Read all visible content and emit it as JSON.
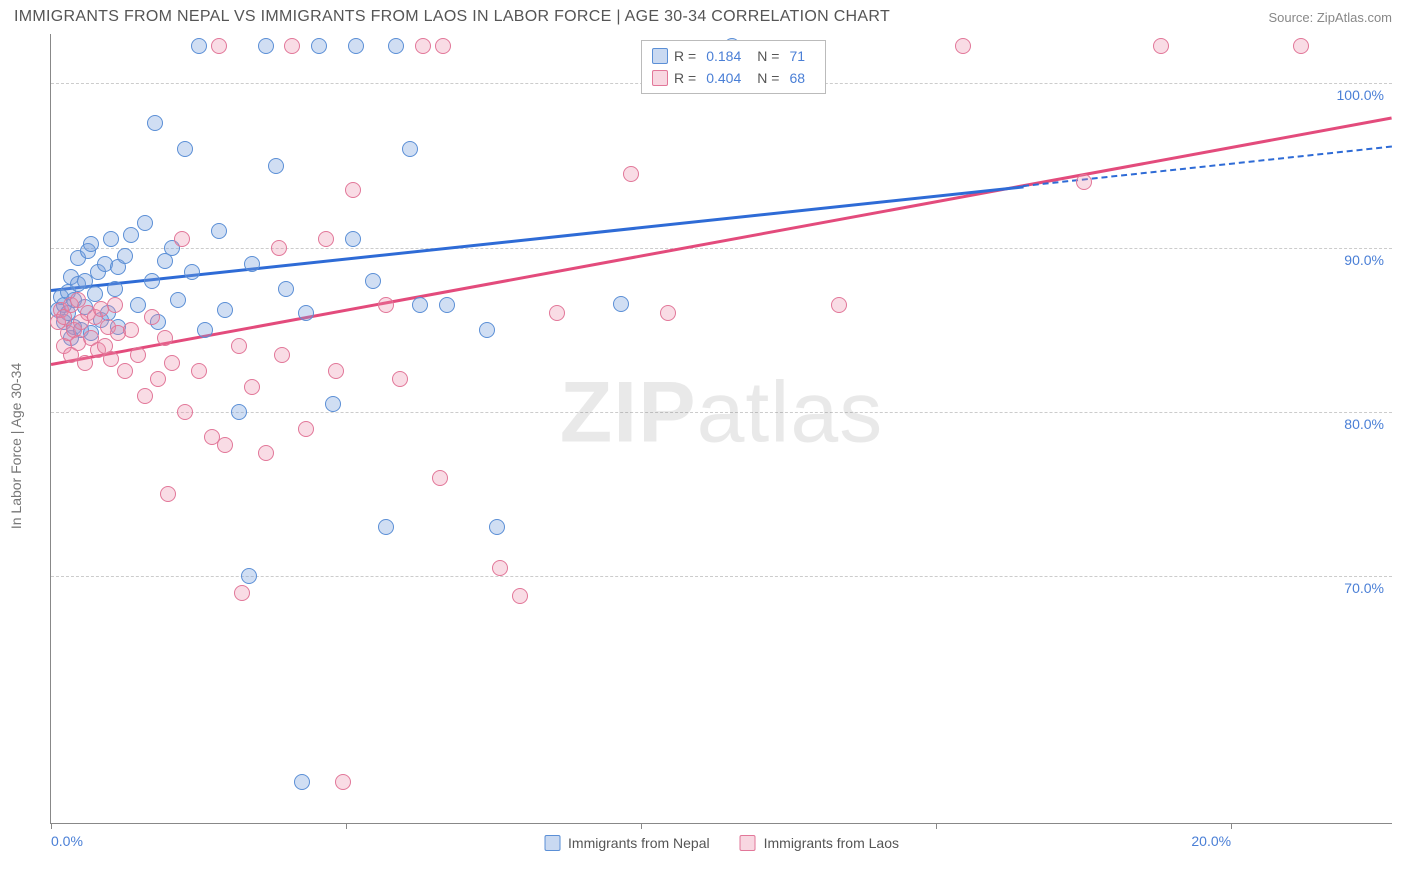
{
  "title": "IMMIGRANTS FROM NEPAL VS IMMIGRANTS FROM LAOS IN LABOR FORCE | AGE 30-34 CORRELATION CHART",
  "source": "Source: ZipAtlas.com",
  "watermark_a": "ZIP",
  "watermark_b": "atlas",
  "yaxis_title": "In Labor Force | Age 30-34",
  "chart": {
    "type": "scatter",
    "xlim": [
      0,
      20
    ],
    "ylim": [
      55,
      103
    ],
    "xticks": [
      0,
      4.4,
      8.8,
      13.2,
      17.6
    ],
    "xtick_labels": [
      "0.0%",
      "",
      "",
      "",
      "20.0%"
    ],
    "yticks": [
      70,
      80,
      90,
      100
    ],
    "ytick_labels": [
      "70.0%",
      "80.0%",
      "90.0%",
      "100.0%"
    ],
    "background_color": "#ffffff",
    "grid_color": "#cccccc",
    "marker_radius": 8,
    "series": [
      {
        "name": "Immigrants from Nepal",
        "color_fill": "rgba(120,160,220,0.35)",
        "color_stroke": "#5b8fd6",
        "trend_color": "#2e6bd6",
        "R": "0.184",
        "N": "71",
        "trend": {
          "x1": 0,
          "y1": 87.5,
          "x2": 14.5,
          "y2": 93.8,
          "dash_x2": 20,
          "dash_y2": 96.2
        },
        "points": [
          [
            0.1,
            86.2
          ],
          [
            0.15,
            87.0
          ],
          [
            0.2,
            85.5
          ],
          [
            0.2,
            86.5
          ],
          [
            0.25,
            86.0
          ],
          [
            0.25,
            87.3
          ],
          [
            0.3,
            84.5
          ],
          [
            0.3,
            88.2
          ],
          [
            0.35,
            85.2
          ],
          [
            0.35,
            86.8
          ],
          [
            0.4,
            87.8
          ],
          [
            0.4,
            89.4
          ],
          [
            0.45,
            85.0
          ],
          [
            0.5,
            86.4
          ],
          [
            0.5,
            88.0
          ],
          [
            0.55,
            89.8
          ],
          [
            0.6,
            84.8
          ],
          [
            0.6,
            90.2
          ],
          [
            0.65,
            87.2
          ],
          [
            0.7,
            88.5
          ],
          [
            0.75,
            85.6
          ],
          [
            0.8,
            89.0
          ],
          [
            0.85,
            86.0
          ],
          [
            0.9,
            90.5
          ],
          [
            0.95,
            87.5
          ],
          [
            1.0,
            88.8
          ],
          [
            1.0,
            85.2
          ],
          [
            1.1,
            89.5
          ],
          [
            1.2,
            90.8
          ],
          [
            1.3,
            86.5
          ],
          [
            1.4,
            91.5
          ],
          [
            1.5,
            88.0
          ],
          [
            1.55,
            97.6
          ],
          [
            1.6,
            85.5
          ],
          [
            1.7,
            89.2
          ],
          [
            1.8,
            90.0
          ],
          [
            1.9,
            86.8
          ],
          [
            2.0,
            96.0
          ],
          [
            2.1,
            88.5
          ],
          [
            2.2,
            102.3
          ],
          [
            2.3,
            85.0
          ],
          [
            2.5,
            91.0
          ],
          [
            2.6,
            86.2
          ],
          [
            2.8,
            80.0
          ],
          [
            2.95,
            70.0
          ],
          [
            3.0,
            89.0
          ],
          [
            3.2,
            102.3
          ],
          [
            3.35,
            95.0
          ],
          [
            3.5,
            87.5
          ],
          [
            3.75,
            57.5
          ],
          [
            3.8,
            86.0
          ],
          [
            4.0,
            102.3
          ],
          [
            4.2,
            80.5
          ],
          [
            4.5,
            90.5
          ],
          [
            4.55,
            102.3
          ],
          [
            4.8,
            88.0
          ],
          [
            5.0,
            73.0
          ],
          [
            5.15,
            102.3
          ],
          [
            5.35,
            96.0
          ],
          [
            5.5,
            86.5
          ],
          [
            5.9,
            86.5
          ],
          [
            6.5,
            85.0
          ],
          [
            6.65,
            73.0
          ],
          [
            8.5,
            86.6
          ],
          [
            10.15,
            102.3
          ]
        ]
      },
      {
        "name": "Immigrants from Laos",
        "color_fill": "rgba(235,140,170,0.30)",
        "color_stroke": "#e27799",
        "trend_color": "#e34b7c",
        "R": "0.404",
        "N": "68",
        "trend": {
          "x1": 0,
          "y1": 83.0,
          "x2": 20,
          "y2": 98.0
        },
        "points": [
          [
            0.1,
            85.5
          ],
          [
            0.15,
            86.2
          ],
          [
            0.2,
            84.0
          ],
          [
            0.2,
            85.8
          ],
          [
            0.25,
            84.8
          ],
          [
            0.3,
            86.5
          ],
          [
            0.3,
            83.5
          ],
          [
            0.35,
            85.0
          ],
          [
            0.4,
            86.8
          ],
          [
            0.4,
            84.2
          ],
          [
            0.45,
            85.5
          ],
          [
            0.5,
            83.0
          ],
          [
            0.55,
            86.0
          ],
          [
            0.6,
            84.5
          ],
          [
            0.65,
            85.8
          ],
          [
            0.7,
            83.8
          ],
          [
            0.75,
            86.3
          ],
          [
            0.8,
            84.0
          ],
          [
            0.85,
            85.2
          ],
          [
            0.9,
            83.2
          ],
          [
            0.95,
            86.5
          ],
          [
            1.0,
            84.8
          ],
          [
            1.1,
            82.5
          ],
          [
            1.2,
            85.0
          ],
          [
            1.3,
            83.5
          ],
          [
            1.4,
            81.0
          ],
          [
            1.5,
            85.8
          ],
          [
            1.6,
            82.0
          ],
          [
            1.7,
            84.5
          ],
          [
            1.75,
            75.0
          ],
          [
            1.8,
            83.0
          ],
          [
            1.95,
            90.5
          ],
          [
            2.0,
            80.0
          ],
          [
            2.2,
            82.5
          ],
          [
            2.4,
            78.5
          ],
          [
            2.5,
            102.3
          ],
          [
            2.6,
            78.0
          ],
          [
            2.8,
            84.0
          ],
          [
            2.85,
            69.0
          ],
          [
            3.0,
            81.5
          ],
          [
            3.2,
            77.5
          ],
          [
            3.4,
            90.0
          ],
          [
            3.45,
            83.5
          ],
          [
            3.6,
            102.3
          ],
          [
            3.8,
            79.0
          ],
          [
            4.1,
            90.5
          ],
          [
            4.25,
            82.5
          ],
          [
            4.35,
            57.5
          ],
          [
            4.5,
            93.5
          ],
          [
            5.0,
            86.5
          ],
          [
            5.2,
            82.0
          ],
          [
            5.55,
            102.3
          ],
          [
            5.8,
            76.0
          ],
          [
            5.85,
            102.3
          ],
          [
            6.7,
            70.5
          ],
          [
            7.0,
            68.8
          ],
          [
            7.55,
            86.0
          ],
          [
            8.65,
            94.5
          ],
          [
            9.2,
            86.0
          ],
          [
            11.75,
            86.5
          ],
          [
            13.6,
            102.3
          ],
          [
            15.4,
            94.0
          ],
          [
            16.55,
            102.3
          ],
          [
            18.65,
            102.3
          ]
        ]
      }
    ]
  },
  "legend": {
    "r_label": "R =",
    "n_label": "N ="
  }
}
